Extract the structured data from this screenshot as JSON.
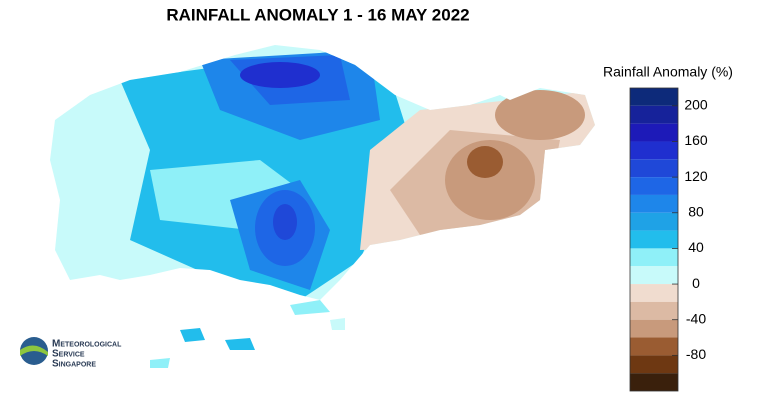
{
  "title": "RAINFALL ANOMALY 1 - 16 MAY 2022",
  "legend": {
    "title": "Rainfall Anomaly (%)",
    "range": [
      -120,
      220
    ],
    "bounds": [
      220,
      200,
      180,
      160,
      140,
      120,
      100,
      80,
      60,
      40,
      20,
      0,
      -20,
      -40,
      -60,
      -80,
      -100,
      -120
    ],
    "colors": [
      "#0d2a7a",
      "#16229a",
      "#1d1ab8",
      "#1f2fcf",
      "#1f48d8",
      "#1e66e6",
      "#1e86ea",
      "#1fa2e6",
      "#22bdec",
      "#8ff0f8",
      "#c8fafa",
      "#f0dccf",
      "#dcbaa4",
      "#c89a7c",
      "#9a5c32",
      "#6e3812",
      "#3a200c"
    ],
    "ticks": [
      200,
      160,
      120,
      80,
      40,
      0,
      -40,
      -80
    ]
  },
  "logo": {
    "lines": [
      "Meteorological",
      "Service",
      "Singapore"
    ]
  }
}
